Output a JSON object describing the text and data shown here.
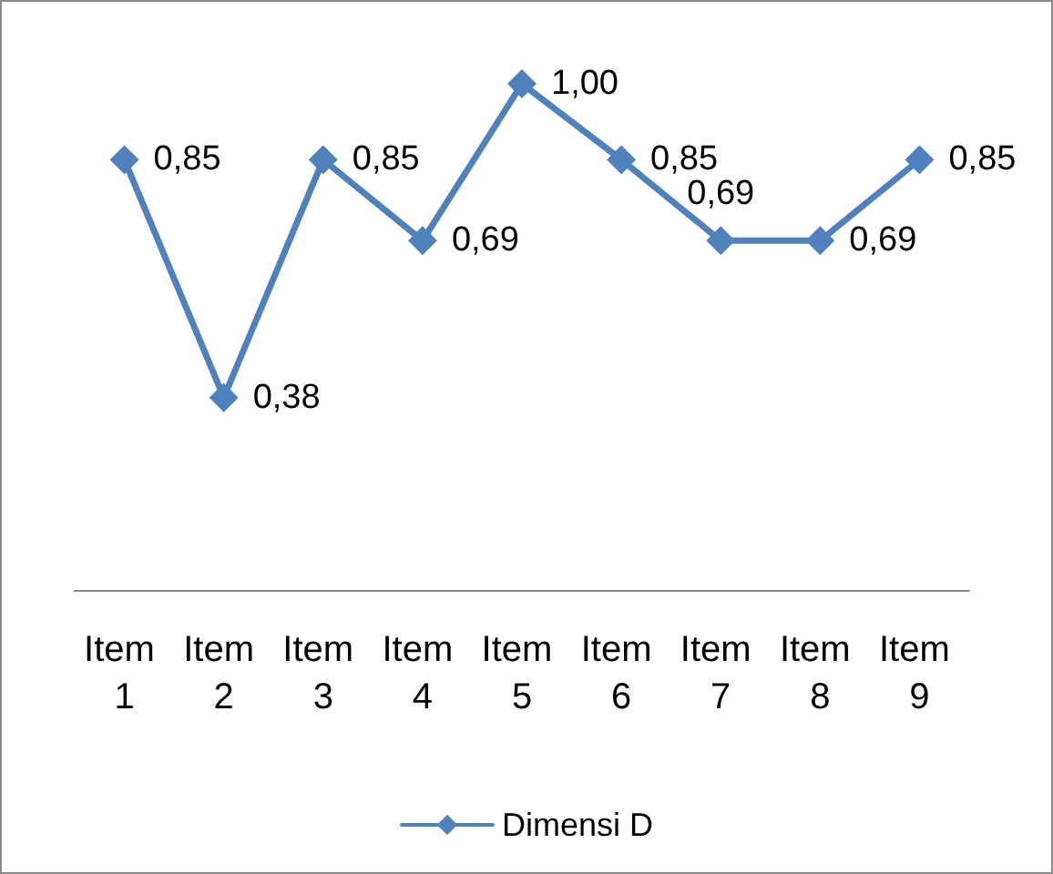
{
  "chart_data": {
    "type": "line",
    "categories": [
      "Item 1",
      "Item 2",
      "Item 3",
      "Item 4",
      "Item 5",
      "Item 6",
      "Item 7",
      "Item 8",
      "Item 9"
    ],
    "series": [
      {
        "name": "Dimensi D",
        "color": "#4f81bd",
        "values": [
          0.85,
          0.38,
          0.85,
          0.69,
          1.0,
          0.85,
          0.69,
          0.69,
          0.85
        ],
        "value_labels": [
          "0,85",
          "0,38",
          "0,85",
          "0,69",
          "1,00",
          "0,85",
          "0,69",
          "0,69",
          "0,85"
        ]
      }
    ],
    "tick_labels": "x",
    "grid": false,
    "legend": "bottom",
    "marker": "diamond",
    "line_style": "solid"
  }
}
